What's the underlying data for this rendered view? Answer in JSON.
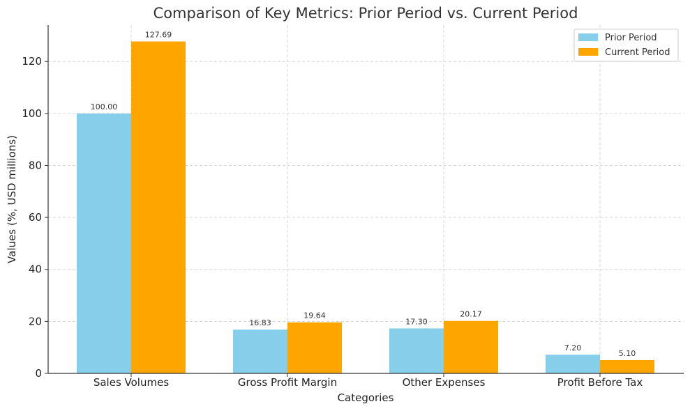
{
  "chart_data": {
    "type": "bar",
    "title": "Comparison of Key Metrics: Prior Period vs. Current Period",
    "xlabel": "Categories",
    "ylabel": "Values (%, USD millions)",
    "categories": [
      "Sales Volumes",
      "Gross Profit Margin",
      "Other Expenses",
      "Profit Before Tax"
    ],
    "series": [
      {
        "name": "Prior Period",
        "color": "#87CEEB",
        "values": [
          100.0,
          16.83,
          17.3,
          7.2
        ],
        "labels": [
          "100.00",
          "16.83",
          "17.30",
          "7.20"
        ]
      },
      {
        "name": "Current Period",
        "color": "#FFA500",
        "values": [
          127.69,
          19.64,
          20.17,
          5.1
        ],
        "labels": [
          "127.69",
          "19.64",
          "20.17",
          "5.10"
        ]
      }
    ],
    "ylim": [
      0,
      134
    ],
    "yticks": [
      0,
      20,
      40,
      60,
      80,
      100,
      120
    ],
    "grid": true,
    "legend": "top-right"
  }
}
